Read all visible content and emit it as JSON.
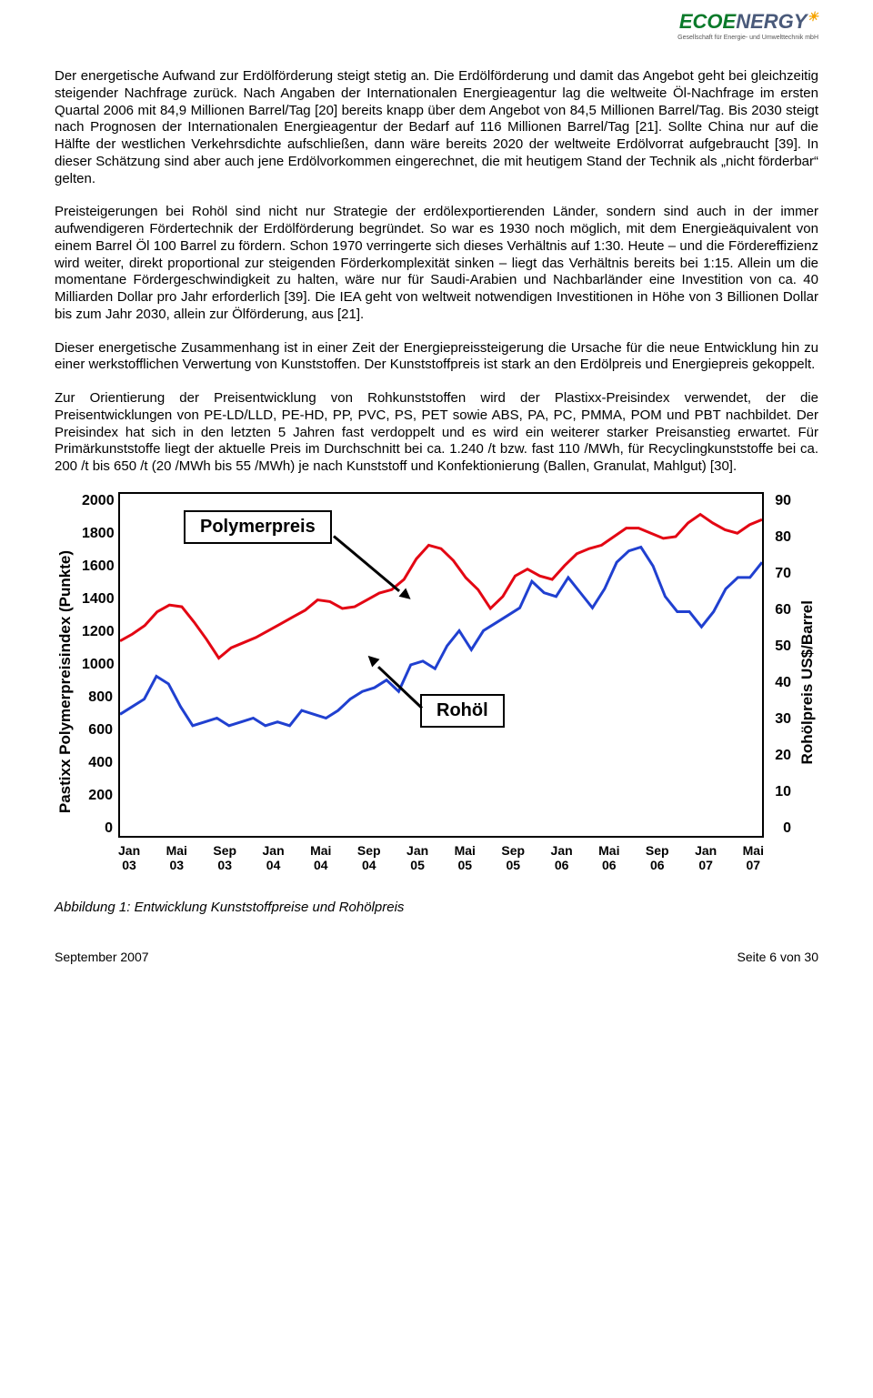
{
  "logo": {
    "eco": "ECO",
    "nergy": "NERGY",
    "sun": "☀",
    "sub": "Gesellschaft für Energie- und Umwelttechnik mbH"
  },
  "paragraphs": [
    "Der energetische Aufwand zur Erdölförderung steigt stetig an. Die Erdölförderung und damit das Angebot geht bei gleichzeitig steigender Nachfrage zurück. Nach Angaben der Internationalen Energieagentur lag die weltweite Öl-Nachfrage im ersten Quartal 2006 mit 84,9 Millionen Barrel/Tag [20] bereits knapp über dem Angebot von 84,5 Millionen Barrel/Tag. Bis 2030 steigt nach Prognosen der Internationalen Energieagentur der Bedarf auf 116 Millionen Barrel/Tag [21]. Sollte China nur auf die Hälfte der westlichen Verkehrsdichte aufschließen, dann wäre bereits 2020 der weltweite Erdölvorrat aufgebraucht [39]. In dieser Schätzung sind aber auch jene Erdölvorkommen eingerechnet, die mit heutigem Stand der Technik als „nicht förderbar“ gelten.",
    "Preisteigerungen bei Rohöl sind nicht nur Strategie der erdölexportierenden Länder, sondern sind auch in der immer aufwendigeren Fördertechnik der Erdölförderung begründet. So war es 1930 noch möglich, mit dem Energieäquivalent von einem Barrel Öl 100 Barrel zu fördern. Schon 1970 verringerte sich dieses Verhältnis auf 1:30. Heute – und die Fördereffizienz wird weiter, direkt proportional zur steigenden Förderkomplexität sinken – liegt das Verhältnis bereits bei 1:15. Allein um die momentane Fördergeschwindigkeit zu halten, wäre nur für Saudi-Arabien und Nachbarländer eine Investition von ca. 40 Milliarden Dollar pro Jahr erforderlich [39]. Die IEA geht von weltweit notwendigen Investitionen in Höhe von 3 Billionen Dollar bis zum Jahr 2030, allein zur Ölförderung, aus [21].",
    "Dieser energetische Zusammenhang ist in einer Zeit der Energiepreissteigerung die Ursache für die neue Entwicklung hin zu einer werkstofflichen Verwertung von Kunststoffen. Der Kunststoffpreis ist stark an den Erdölpreis und Energiepreis gekoppelt.",
    "Zur Orientierung der Preisentwicklung von Rohkunststoffen wird der Plastixx-Preisindex verwendet, der die Preisentwicklungen von PE-LD/LLD, PE-HD, PP, PVC, PS, PET sowie ABS, PA, PC, PMMA, POM und PBT nachbildet. Der Preisindex hat sich in den letzten 5 Jahren fast verdoppelt und es wird ein weiterer starker Preisanstieg erwartet. Für Primärkunststoffe liegt der aktuelle Preis im Durchschnitt bei ca. 1.240 /t bzw. fast 110 /MWh, für Recyclingkunststoffe bei ca. 200 /t bis 650 /t (20 /MWh bis 55 /MWh) je nach Kunststoff und Konfektionierung (Ballen, Granulat, Mahlgut) [30]."
  ],
  "chart": {
    "y_left_label": "Pastixx Polymerpreisindex (Punkte)",
    "y_right_label": "Rohölpreis US$/Barrel",
    "y_left_ticks": [
      "2000",
      "1800",
      "1600",
      "1400",
      "1200",
      "1000",
      "800",
      "600",
      "400",
      "200",
      "0"
    ],
    "y_right_ticks": [
      "90",
      "80",
      "70",
      "60",
      "50",
      "40",
      "30",
      "20",
      "10",
      "0"
    ],
    "x_ticks": [
      "Jan\n03",
      "Mai\n03",
      "Sep\n03",
      "Jan\n04",
      "Mai\n04",
      "Sep\n04",
      "Jan\n05",
      "Mai\n05",
      "Sep\n05",
      "Jan\n06",
      "Mai\n06",
      "Sep\n06",
      "Jan\n07",
      "Mai\n07"
    ],
    "legend_polymer": "Polymerpreis",
    "legend_rohol": "Rohöl",
    "colors": {
      "polymer": "#e30613",
      "rohol": "#2040d0",
      "border": "#000000"
    },
    "line_width": 3,
    "y_left_range": [
      0,
      2000
    ],
    "y_right_range": [
      0,
      90
    ],
    "series": {
      "polymer": [
        1140,
        1180,
        1230,
        1310,
        1350,
        1340,
        1250,
        1150,
        1040,
        1100,
        1130,
        1160,
        1200,
        1240,
        1280,
        1320,
        1380,
        1370,
        1330,
        1340,
        1380,
        1420,
        1440,
        1500,
        1620,
        1700,
        1680,
        1610,
        1510,
        1440,
        1330,
        1400,
        1520,
        1560,
        1520,
        1500,
        1580,
        1650,
        1680,
        1700,
        1750,
        1800,
        1800,
        1770,
        1740,
        1750,
        1830,
        1880,
        1830,
        1790,
        1770,
        1820,
        1850
      ],
      "rohol": [
        32,
        34,
        36,
        42,
        40,
        34,
        29,
        30,
        31,
        29,
        30,
        31,
        29,
        30,
        29,
        33,
        32,
        31,
        33,
        36,
        38,
        39,
        41,
        38,
        45,
        46,
        44,
        50,
        54,
        49,
        54,
        56,
        58,
        60,
        67,
        64,
        63,
        68,
        64,
        60,
        65,
        72,
        75,
        76,
        71,
        63,
        59,
        59,
        55,
        59,
        65,
        68,
        68,
        72
      ]
    }
  },
  "caption": "Abbildung 1:  Entwicklung Kunststoffpreise und Rohölpreis",
  "footer": {
    "left": "September 2007",
    "right": "Seite 6 von 30"
  }
}
